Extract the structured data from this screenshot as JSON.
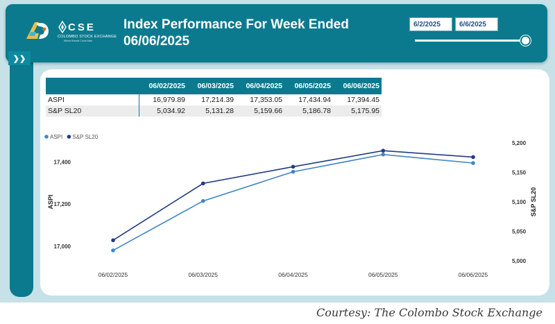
{
  "header": {
    "title": "Index Performance For Week Ended 06/06/2025",
    "logo": {
      "letters": "CSE",
      "name": "COLOMBO STOCK EXCHANGE",
      "tagline": "Where Brands Come Alive"
    },
    "date_range": {
      "from": "6/2/2025",
      "to": "6/6/2025",
      "slider_position": 1.0
    }
  },
  "table": {
    "columns": [
      "06/02/2025",
      "06/03/2025",
      "06/04/2025",
      "06/05/2025",
      "06/06/2025"
    ],
    "rows": [
      {
        "label": "ASPI",
        "values": [
          "16,979.89",
          "17,214.39",
          "17,353.05",
          "17,434.94",
          "17,394.45"
        ]
      },
      {
        "label": "S&P SL20",
        "values": [
          "5,034.92",
          "5,131.28",
          "5,159.66",
          "5,186.78",
          "5,175.95"
        ]
      }
    ]
  },
  "chart_data": {
    "type": "line",
    "categories": [
      "06/02/2025",
      "06/03/2025",
      "06/04/2025",
      "06/05/2025",
      "06/06/2025"
    ],
    "series": [
      {
        "name": "ASPI",
        "axis": "left",
        "color": "#3f86c6",
        "values": [
          16979.89,
          17214.39,
          17353.05,
          17434.94,
          17394.45
        ]
      },
      {
        "name": "S&P SL20",
        "axis": "right",
        "color": "#223a82",
        "values": [
          5034.92,
          5131.28,
          5159.66,
          5186.78,
          5175.95
        ]
      }
    ],
    "ylabel": "ASPI",
    "y2label": "S&P SL20",
    "ylim": [
      16930,
      17490
    ],
    "y2lim": [
      5000,
      5200
    ],
    "yticks": [
      17000,
      17200,
      17400
    ],
    "y2ticks": [
      5000,
      5050,
      5100,
      5150,
      5200
    ],
    "ytick_labels": [
      "17,000",
      "17,200",
      "17,400"
    ],
    "y2tick_labels": [
      "5,000",
      "5,050",
      "5,100",
      "5,150",
      "5,200"
    ],
    "legend": "top-left",
    "grid": false
  },
  "footer": {
    "credit": "Courtesy: The Colombo Stock Exchange"
  }
}
